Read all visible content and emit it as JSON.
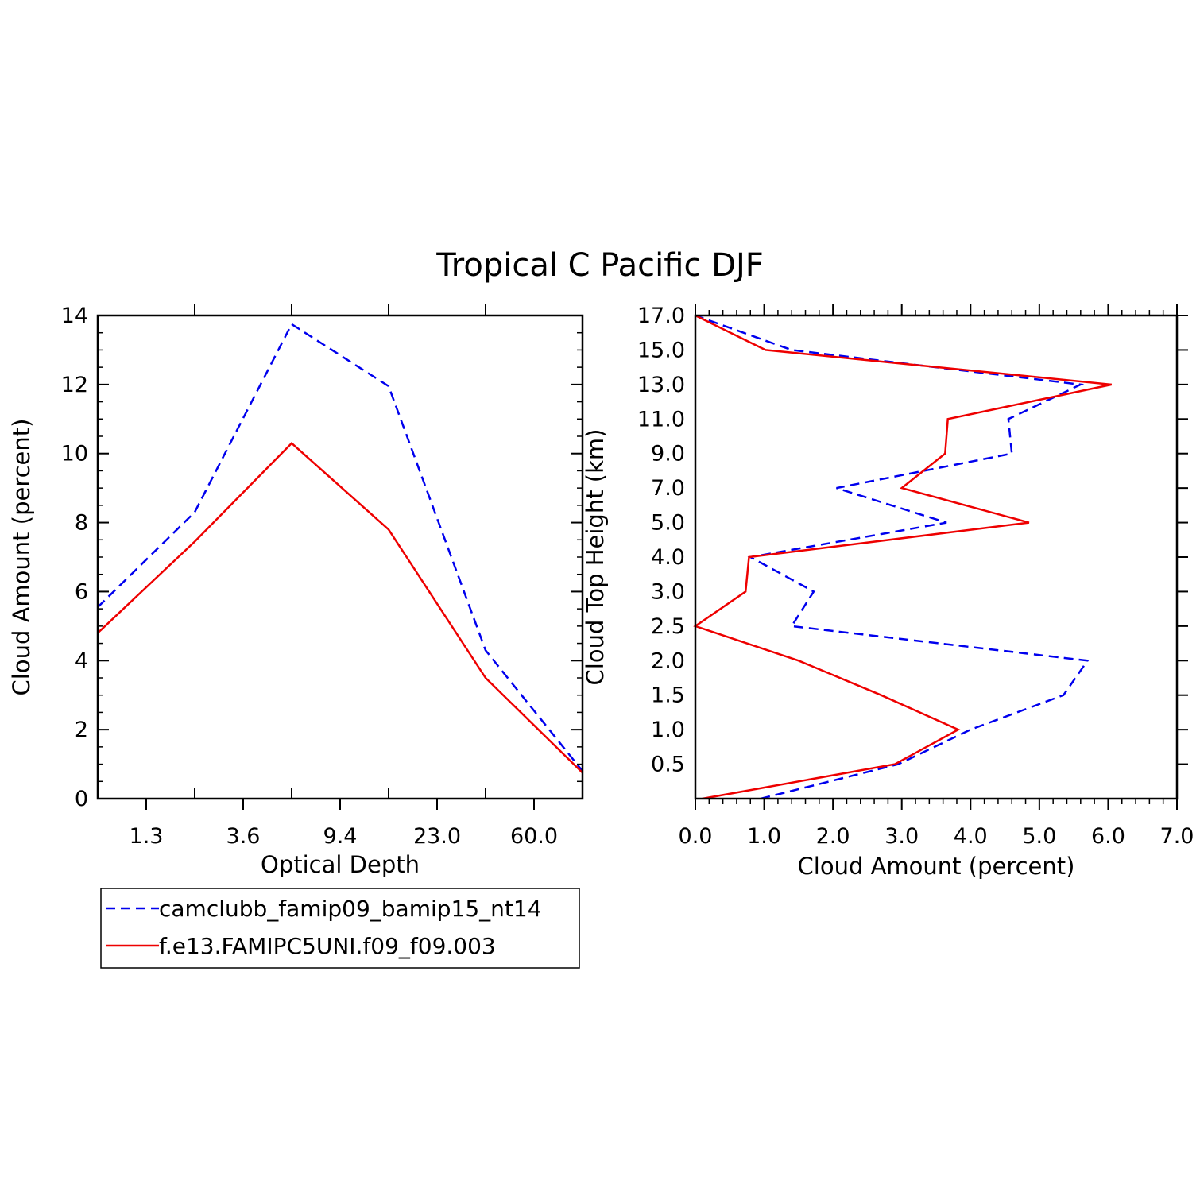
{
  "title": "Tropical C Pacific DJF",
  "colors": {
    "series1": "#0000ee",
    "series2": "#ee0000",
    "axis": "#000000"
  },
  "legend": [
    {
      "label": "camclubb_famip09_bamip15_nt14",
      "color": "#0000ee",
      "dash": true
    },
    {
      "label": "f.e13.FAMIPC5UNI.f09_f09.003",
      "color": "#ee0000",
      "dash": false
    }
  ],
  "chart_data": [
    {
      "type": "line",
      "xlabel": "Optical Depth",
      "ylabel": "Cloud Amount (percent)",
      "ylim": [
        0,
        14
      ],
      "yticks": [
        0,
        2,
        4,
        6,
        8,
        10,
        12,
        14
      ],
      "xcategories": [
        "1.3",
        "3.6",
        "9.4",
        "23.0",
        "60.0"
      ],
      "series": [
        {
          "name": "camclubb_famip09_bamip15_nt14",
          "x": [
            0,
            1,
            2,
            3,
            4,
            5
          ],
          "values": [
            5.55,
            8.3,
            13.75,
            11.95,
            4.3,
            0.8
          ]
        },
        {
          "name": "f.e13.FAMIPC5UNI.f09_f09.003",
          "x": [
            0,
            1,
            2,
            3,
            4,
            5
          ],
          "values": [
            4.8,
            7.45,
            10.3,
            7.8,
            3.5,
            0.75
          ]
        }
      ]
    },
    {
      "type": "line",
      "xlabel": "Cloud Amount (percent)",
      "ylabel": "Cloud Top Height (km)",
      "xlim": [
        0,
        7
      ],
      "xticks": [
        "0.0",
        "1.0",
        "2.0",
        "3.0",
        "4.0",
        "5.0",
        "6.0",
        "7.0"
      ],
      "ylevels": [
        "0.5",
        "1.0",
        "1.5",
        "2.0",
        "2.5",
        "3.0",
        "4.0",
        "5.0",
        "7.0",
        "9.0",
        "11.0",
        "13.0",
        "15.0",
        "17.0"
      ],
      "series": [
        {
          "name": "camclubb_famip09_bamip15_nt14",
          "y": [
            0,
            1,
            2,
            3,
            4,
            5,
            6,
            7,
            8,
            9,
            10,
            11,
            12,
            13,
            14
          ],
          "values": [
            0.95,
            2.95,
            4.0,
            5.35,
            5.7,
            1.4,
            1.72,
            0.8,
            3.65,
            2.05,
            4.6,
            4.55,
            5.6,
            1.4,
            0.0
          ]
        },
        {
          "name": "f.e13.FAMIPC5UNI.f09_f09.003",
          "y": [
            0,
            1,
            2,
            3,
            4,
            5,
            6,
            7,
            8,
            9,
            10,
            11,
            12,
            13,
            14
          ],
          "values": [
            0.1,
            2.9,
            3.82,
            2.7,
            1.5,
            0.0,
            0.73,
            0.78,
            4.85,
            3.0,
            3.63,
            3.67,
            6.05,
            1.02,
            0.0
          ]
        }
      ]
    }
  ]
}
